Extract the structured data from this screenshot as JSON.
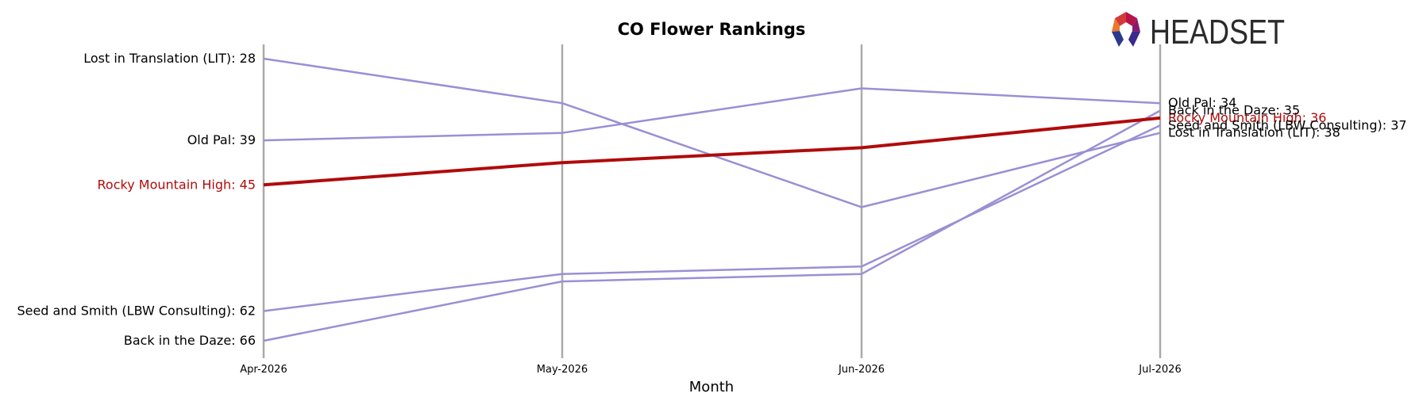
{
  "chart_data": {
    "type": "line",
    "title": "CO Flower Rankings",
    "xlabel": "Month",
    "ylabel": "",
    "x": [
      "Apr-2026",
      "May-2026",
      "Jun-2026",
      "Jul-2026"
    ],
    "y_inverted": true,
    "ylim": [
      69,
      24
    ],
    "grid": "vertical lines at each month",
    "series": [
      {
        "name": "Lost in Translation (LIT)",
        "values": [
          28,
          34,
          48,
          38
        ],
        "color": "#9b8fd4",
        "highlight": false
      },
      {
        "name": "Old Pal",
        "values": [
          39,
          38,
          32,
          34
        ],
        "color": "#9b8fd4",
        "highlight": false
      },
      {
        "name": "Rocky Mountain High",
        "values": [
          45,
          42,
          40,
          36
        ],
        "color": "#b00b0b",
        "highlight": true
      },
      {
        "name": "Seed and Smith (LBW Consulting)",
        "values": [
          62,
          57,
          56,
          37
        ],
        "color": "#9b8fd4",
        "highlight": false
      },
      {
        "name": "Back in the Daze",
        "values": [
          66,
          58,
          57,
          35
        ],
        "color": "#9b8fd4",
        "highlight": false
      }
    ]
  },
  "logo": {
    "text": "HEADSET"
  },
  "colors": {
    "axis": "#aaaaaa",
    "highlight": "#b00b0b",
    "series": "#9b8fd4"
  }
}
